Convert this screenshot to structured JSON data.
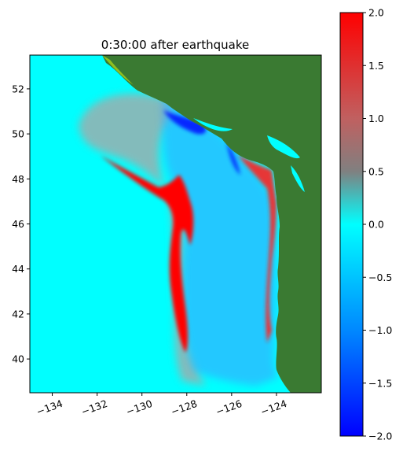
{
  "chart_data": {
    "type": "heatmap",
    "title": "0:30:00 after earthquake",
    "xlabel": "",
    "ylabel": "",
    "xlim": [
      -135.0,
      -122.0
    ],
    "ylim": [
      38.5,
      53.5
    ],
    "x_ticks": [
      -134,
      -132,
      -130,
      -128,
      -126,
      -124
    ],
    "x_tick_labels": [
      "−134",
      "−132",
      "−130",
      "−128",
      "−126",
      "−124"
    ],
    "y_ticks": [
      40,
      42,
      44,
      46,
      48,
      50,
      52
    ],
    "y_tick_labels": [
      "40",
      "42",
      "44",
      "46",
      "48",
      "50",
      "52"
    ],
    "colorbar": {
      "range": [
        -2.0,
        2.0
      ],
      "ticks": [
        2.0,
        1.5,
        1.0,
        0.5,
        0.0,
        -0.5,
        -1.0,
        -1.5,
        -2.0
      ],
      "tick_labels": [
        "2.0",
        "1.5",
        "1.0",
        "0.5",
        "0.0",
        "−0.5",
        "−1.0",
        "−1.5",
        "−2.0"
      ],
      "colormap": [
        "#0000ff",
        "#00ffff",
        "#808080",
        "#ff0000"
      ]
    },
    "colors": {
      "land": "#3a7a32",
      "ocean": "#00ffff",
      "wave_crest": "#ff0000",
      "wave_trough": "#0066ff",
      "tidal_flat": "#8fbf1f",
      "grey_wave": "#9ab0b0"
    },
    "grid": false,
    "legend": "none"
  }
}
